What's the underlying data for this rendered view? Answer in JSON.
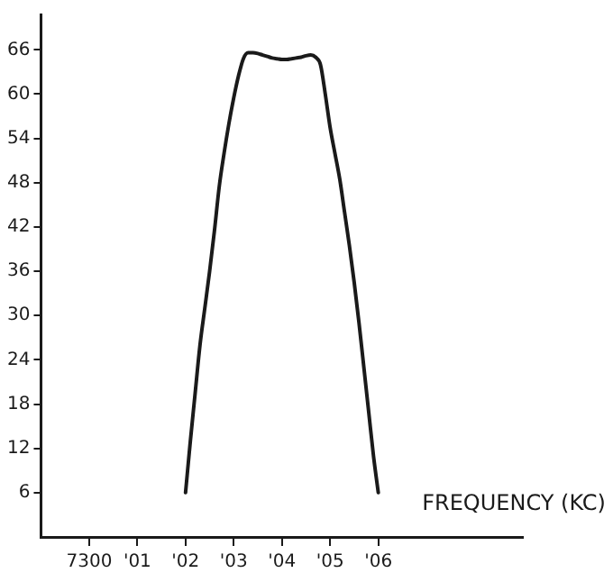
{
  "chart_data": {
    "type": "line",
    "xlabel": "FREQUENCY (KC)",
    "categories": [
      null,
      null,
      null,
      null,
      null,
      null,
      null,
      null,
      null,
      null,
      "7300",
      null,
      null,
      null,
      null,
      null,
      null,
      null,
      null,
      null,
      "'01",
      null,
      null,
      null,
      null,
      null,
      null,
      null,
      null,
      null,
      "'02",
      null,
      null,
      null,
      null,
      null,
      null,
      null,
      null,
      null,
      "'03",
      null,
      null,
      null,
      null,
      null,
      null,
      null,
      null,
      null,
      "'04",
      null,
      null,
      null,
      null,
      null,
      null,
      null,
      null,
      null,
      "'05",
      null,
      null,
      null,
      null,
      null,
      null,
      null,
      null,
      null,
      "'06",
      null,
      null,
      null,
      null,
      null,
      null,
      null,
      null,
      null,
      null,
      null,
      null,
      null,
      null,
      null,
      null,
      null,
      null,
      null,
      null,
      null,
      null,
      null,
      null,
      null,
      null,
      null,
      null,
      null,
      null
    ],
    "values": [
      null,
      null,
      null,
      null,
      null,
      null,
      null,
      null,
      null,
      null,
      null,
      null,
      null,
      null,
      null,
      null,
      null,
      null,
      null,
      null,
      null,
      null,
      null,
      null,
      null,
      null,
      null,
      null,
      null,
      null,
      6,
      13,
      19.5,
      26,
      31,
      36,
      41.5,
      47.5,
      52,
      56,
      59.5,
      62.5,
      64.8,
      65.6,
      65.6,
      65.5,
      65.3,
      65.1,
      64.9,
      64.8,
      64.7,
      64.7,
      64.8,
      64.9,
      65,
      65.2,
      65.3,
      65,
      64,
      60,
      55.5,
      52,
      48.5,
      44,
      39.5,
      34.5,
      29,
      23,
      17,
      11,
      6,
      null,
      null,
      null,
      null,
      null,
      null,
      null,
      null,
      null,
      null,
      null,
      null,
      null,
      null,
      null,
      null,
      null,
      null,
      null,
      null,
      null,
      null,
      null,
      null,
      null,
      null,
      null,
      null,
      null,
      null
    ],
    "color": "#1a1a1a",
    "ylim": [
      0,
      70.8
    ],
    "yticks": [
      6,
      12,
      18,
      24,
      30,
      36,
      42,
      48,
      54,
      60,
      66
    ],
    "grid": false,
    "legend": false,
    "marker": "none",
    "line_style": "solid"
  }
}
